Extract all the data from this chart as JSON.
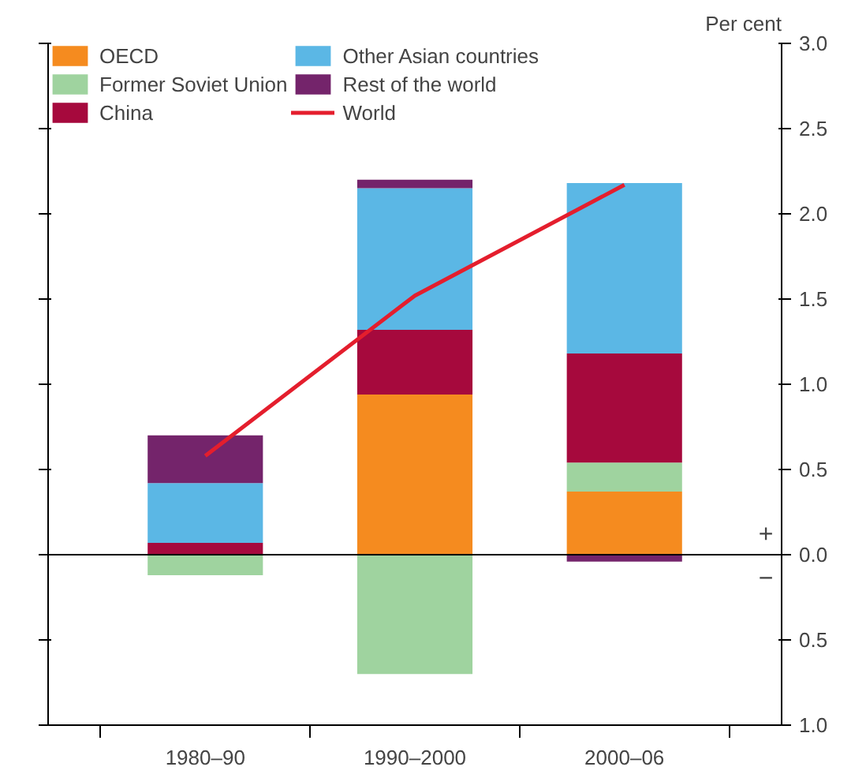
{
  "chart_data": {
    "type": "bar",
    "stacked": true,
    "ylabel": "Per cent",
    "categories": [
      "1980–90",
      "1990–2000",
      "2000–06"
    ],
    "series": [
      {
        "name": "OECD",
        "color": "#f58b1f",
        "values": [
          null,
          0.94,
          0.37
        ]
      },
      {
        "name": "Former Soviet Union",
        "color": "#9fd39f",
        "values": [
          -0.12,
          -0.7,
          0.17
        ]
      },
      {
        "name": "China",
        "color": "#a6093d",
        "values": [
          0.07,
          0.38,
          0.64
        ]
      },
      {
        "name": "Other Asian countries",
        "color": "#5bb7e5",
        "values": [
          0.35,
          0.83,
          1.0
        ]
      },
      {
        "name": "Rest of the world",
        "color": "#74246b",
        "values": [
          0.28,
          0.05,
          -0.04
        ]
      },
      {
        "name": "World",
        "type": "line",
        "color": "#e41e2d",
        "values": [
          0.58,
          1.52,
          2.17
        ]
      }
    ],
    "ylim": [
      -1.0,
      3.0
    ],
    "yticks": [
      {
        "value": -1.0,
        "label": "1.0"
      },
      {
        "value": -0.5,
        "label": "0.5"
      },
      "0.0",
      0.5,
      {
        "value": 1,
        "label": "1.0"
      },
      1.5,
      {
        "value": 2,
        "label": "2.0"
      },
      2.5,
      {
        "value": 3,
        "label": "3.0"
      }
    ],
    "ref_lines": [
      {
        "axis": "y",
        "value": 0
      }
    ],
    "annotations": [
      "+",
      "−"
    ],
    "legend": "top",
    "grid": false
  }
}
